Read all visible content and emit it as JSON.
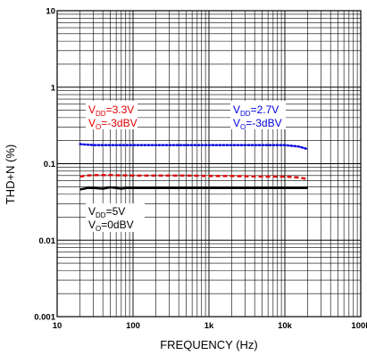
{
  "chart_data": {
    "type": "line",
    "xlabel": "FREQUENCY (Hz)",
    "ylabel": "THD+N (%)",
    "x_scale": "log",
    "y_scale": "log",
    "xlim": [
      10,
      100000
    ],
    "ylim": [
      0.001,
      10
    ],
    "grid": true,
    "x_ticks": [
      {
        "value": 10,
        "label": "10"
      },
      {
        "value": 100,
        "label": "100"
      },
      {
        "value": 1000,
        "label": "1k"
      },
      {
        "value": 10000,
        "label": "10k"
      },
      {
        "value": 100000,
        "label": "100k"
      }
    ],
    "y_ticks": [
      {
        "value": 0.001,
        "label": "0.001"
      },
      {
        "value": 0.01,
        "label": "0.01"
      },
      {
        "value": 0.1,
        "label": "0.1"
      },
      {
        "value": 1,
        "label": "1"
      },
      {
        "value": 10,
        "label": "10"
      }
    ],
    "series": [
      {
        "color": "#0000dd",
        "style": "dotted",
        "x": [
          20,
          30,
          50,
          100,
          200,
          500,
          1000,
          2000,
          5000,
          10000,
          15000,
          20000
        ],
        "y": [
          0.18,
          0.175,
          0.175,
          0.175,
          0.175,
          0.175,
          0.175,
          0.175,
          0.175,
          0.175,
          0.168,
          0.155
        ]
      },
      {
        "color": "#dd0000",
        "style": "dashed",
        "x": [
          20,
          25,
          30,
          50,
          100,
          200,
          500,
          1000,
          2000,
          5000,
          10000,
          15000,
          20000
        ],
        "y": [
          0.068,
          0.07,
          0.071,
          0.071,
          0.07,
          0.07,
          0.07,
          0.069,
          0.069,
          0.068,
          0.068,
          0.066,
          0.063
        ]
      },
      {
        "color": "#000000",
        "style": "solid",
        "x": [
          20,
          25,
          30,
          40,
          50,
          60,
          70,
          80,
          100,
          200,
          500,
          1000,
          2000,
          5000,
          10000,
          20000
        ],
        "y": [
          0.046,
          0.048,
          0.048,
          0.047,
          0.049,
          0.048,
          0.047,
          0.048,
          0.048,
          0.048,
          0.048,
          0.048,
          0.048,
          0.048,
          0.048,
          0.048
        ]
      }
    ],
    "annotations": [
      {
        "color": "#dd0000",
        "line1": {
          "main": "V",
          "sub": "DD",
          "rest": "=3.3V"
        },
        "line2": {
          "main": "V",
          "sub": "O",
          "rest": "=-3dBV"
        }
      },
      {
        "color": "#0000dd",
        "line1": {
          "main": "V",
          "sub": "DD",
          "rest": "=2.7V"
        },
        "line2": {
          "main": "V",
          "sub": "O",
          "rest": "=-3dBV"
        }
      },
      {
        "color": "#000000",
        "line1": {
          "main": "V",
          "sub": "DD",
          "rest": "=5V"
        },
        "line2": {
          "main": "V",
          "sub": "O",
          "rest": "=0dBV"
        }
      }
    ]
  }
}
